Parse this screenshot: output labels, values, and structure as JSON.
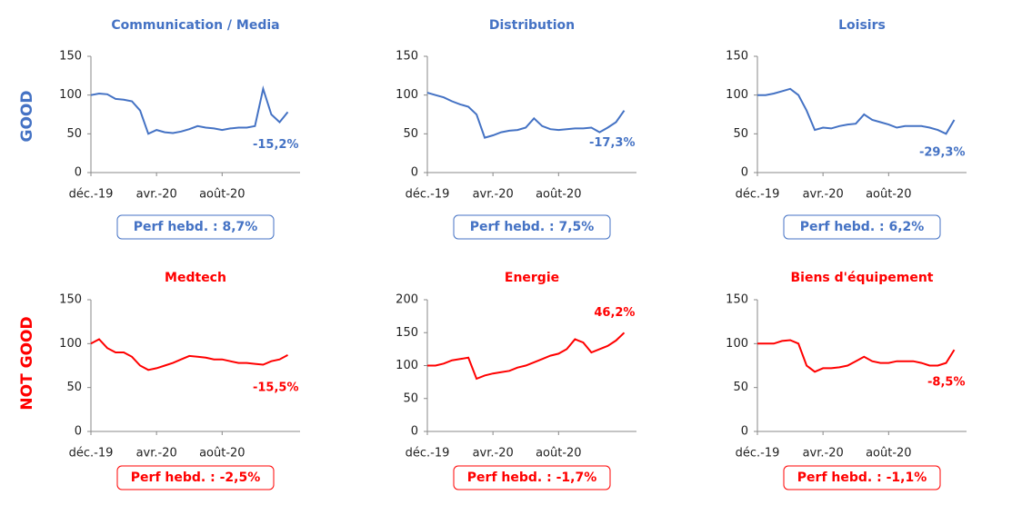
{
  "row_labels": [
    "GOOD",
    "NOT GOOD"
  ],
  "chart_data": [
    {
      "type": "line",
      "title": "Communication / Media",
      "color": "#4472c4",
      "categories": [
        "déc.-19",
        null,
        null,
        null,
        null,
        null,
        null,
        null,
        "avr.-20",
        null,
        null,
        null,
        null,
        null,
        null,
        null,
        "août-20",
        null,
        null,
        null,
        null,
        null,
        null,
        null,
        null
      ],
      "values": [
        100,
        102,
        101,
        95,
        94,
        92,
        80,
        50,
        55,
        52,
        51,
        53,
        56,
        60,
        58,
        57,
        55,
        57,
        58,
        58,
        60,
        108,
        75,
        65,
        78
      ],
      "ylim": [
        0,
        150
      ],
      "yticks": [
        0,
        50,
        100,
        150
      ],
      "annotation": "-15,2%",
      "perf": "Perf hebd. :  8,7%"
    },
    {
      "type": "line",
      "title": "Distribution",
      "color": "#4472c4",
      "categories": [
        "déc.-19",
        null,
        null,
        null,
        null,
        null,
        null,
        null,
        "avr.-20",
        null,
        null,
        null,
        null,
        null,
        null,
        null,
        "août-20",
        null,
        null,
        null,
        null,
        null,
        null,
        null,
        null
      ],
      "values": [
        103,
        100,
        97,
        92,
        88,
        85,
        75,
        45,
        48,
        52,
        54,
        55,
        58,
        70,
        60,
        56,
        55,
        56,
        57,
        57,
        58,
        52,
        58,
        65,
        80
      ],
      "ylim": [
        0,
        150
      ],
      "yticks": [
        0,
        50,
        100,
        150
      ],
      "annotation": "-17,3%",
      "perf": "Perf hebd. :  7,5%"
    },
    {
      "type": "line",
      "title": "Loisirs",
      "color": "#4472c4",
      "categories": [
        "déc.-19",
        null,
        null,
        null,
        null,
        null,
        null,
        null,
        "avr.-20",
        null,
        null,
        null,
        null,
        null,
        null,
        null,
        "août-20",
        null,
        null,
        null,
        null,
        null,
        null,
        null,
        null
      ],
      "values": [
        100,
        100,
        102,
        105,
        108,
        100,
        80,
        55,
        58,
        57,
        60,
        62,
        63,
        75,
        68,
        65,
        62,
        58,
        60,
        60,
        60,
        58,
        55,
        50,
        68
      ],
      "ylim": [
        0,
        150
      ],
      "yticks": [
        0,
        50,
        100,
        150
      ],
      "annotation": "-29,3%",
      "perf": "Perf hebd. :  6,2%"
    },
    {
      "type": "line",
      "title": "Medtech",
      "color": "#ff0000",
      "categories": [
        "déc.-19",
        null,
        null,
        null,
        null,
        null,
        null,
        null,
        "avr.-20",
        null,
        null,
        null,
        null,
        null,
        null,
        null,
        "août-20",
        null,
        null,
        null,
        null,
        null,
        null,
        null,
        null
      ],
      "values": [
        100,
        105,
        95,
        90,
        90,
        85,
        75,
        70,
        72,
        75,
        78,
        82,
        86,
        85,
        84,
        82,
        82,
        80,
        78,
        78,
        77,
        76,
        80,
        82,
        87
      ],
      "ylim": [
        0,
        150
      ],
      "yticks": [
        0,
        50,
        100,
        150
      ],
      "annotation": "-15,5%",
      "perf": "Perf hebd. :  -2,5%"
    },
    {
      "type": "line",
      "title": "Energie",
      "color": "#ff0000",
      "categories": [
        "déc.-19",
        null,
        null,
        null,
        null,
        null,
        null,
        null,
        "avr.-20",
        null,
        null,
        null,
        null,
        null,
        null,
        null,
        "août-20",
        null,
        null,
        null,
        null,
        null,
        null,
        null,
        null
      ],
      "values": [
        100,
        100,
        103,
        108,
        110,
        112,
        80,
        85,
        88,
        90,
        92,
        97,
        100,
        105,
        110,
        115,
        118,
        125,
        140,
        135,
        120,
        125,
        130,
        138,
        150
      ],
      "ylim": [
        0,
        200
      ],
      "yticks": [
        0,
        50,
        100,
        150,
        200
      ],
      "annotation": "46,2%",
      "perf": "Perf hebd. :  -1,7%"
    },
    {
      "type": "line",
      "title": "Biens d'équipement",
      "color": "#ff0000",
      "categories": [
        "déc.-19",
        null,
        null,
        null,
        null,
        null,
        null,
        null,
        "avr.-20",
        null,
        null,
        null,
        null,
        null,
        null,
        null,
        "août-20",
        null,
        null,
        null,
        null,
        null,
        null,
        null,
        null
      ],
      "values": [
        100,
        100,
        100,
        103,
        104,
        100,
        75,
        68,
        72,
        72,
        73,
        75,
        80,
        85,
        80,
        78,
        78,
        80,
        80,
        80,
        78,
        75,
        75,
        78,
        93
      ],
      "ylim": [
        0,
        150
      ],
      "yticks": [
        0,
        50,
        100,
        150
      ],
      "annotation": "-8,5%",
      "perf": "Perf hebd. :  -1,1%"
    }
  ]
}
